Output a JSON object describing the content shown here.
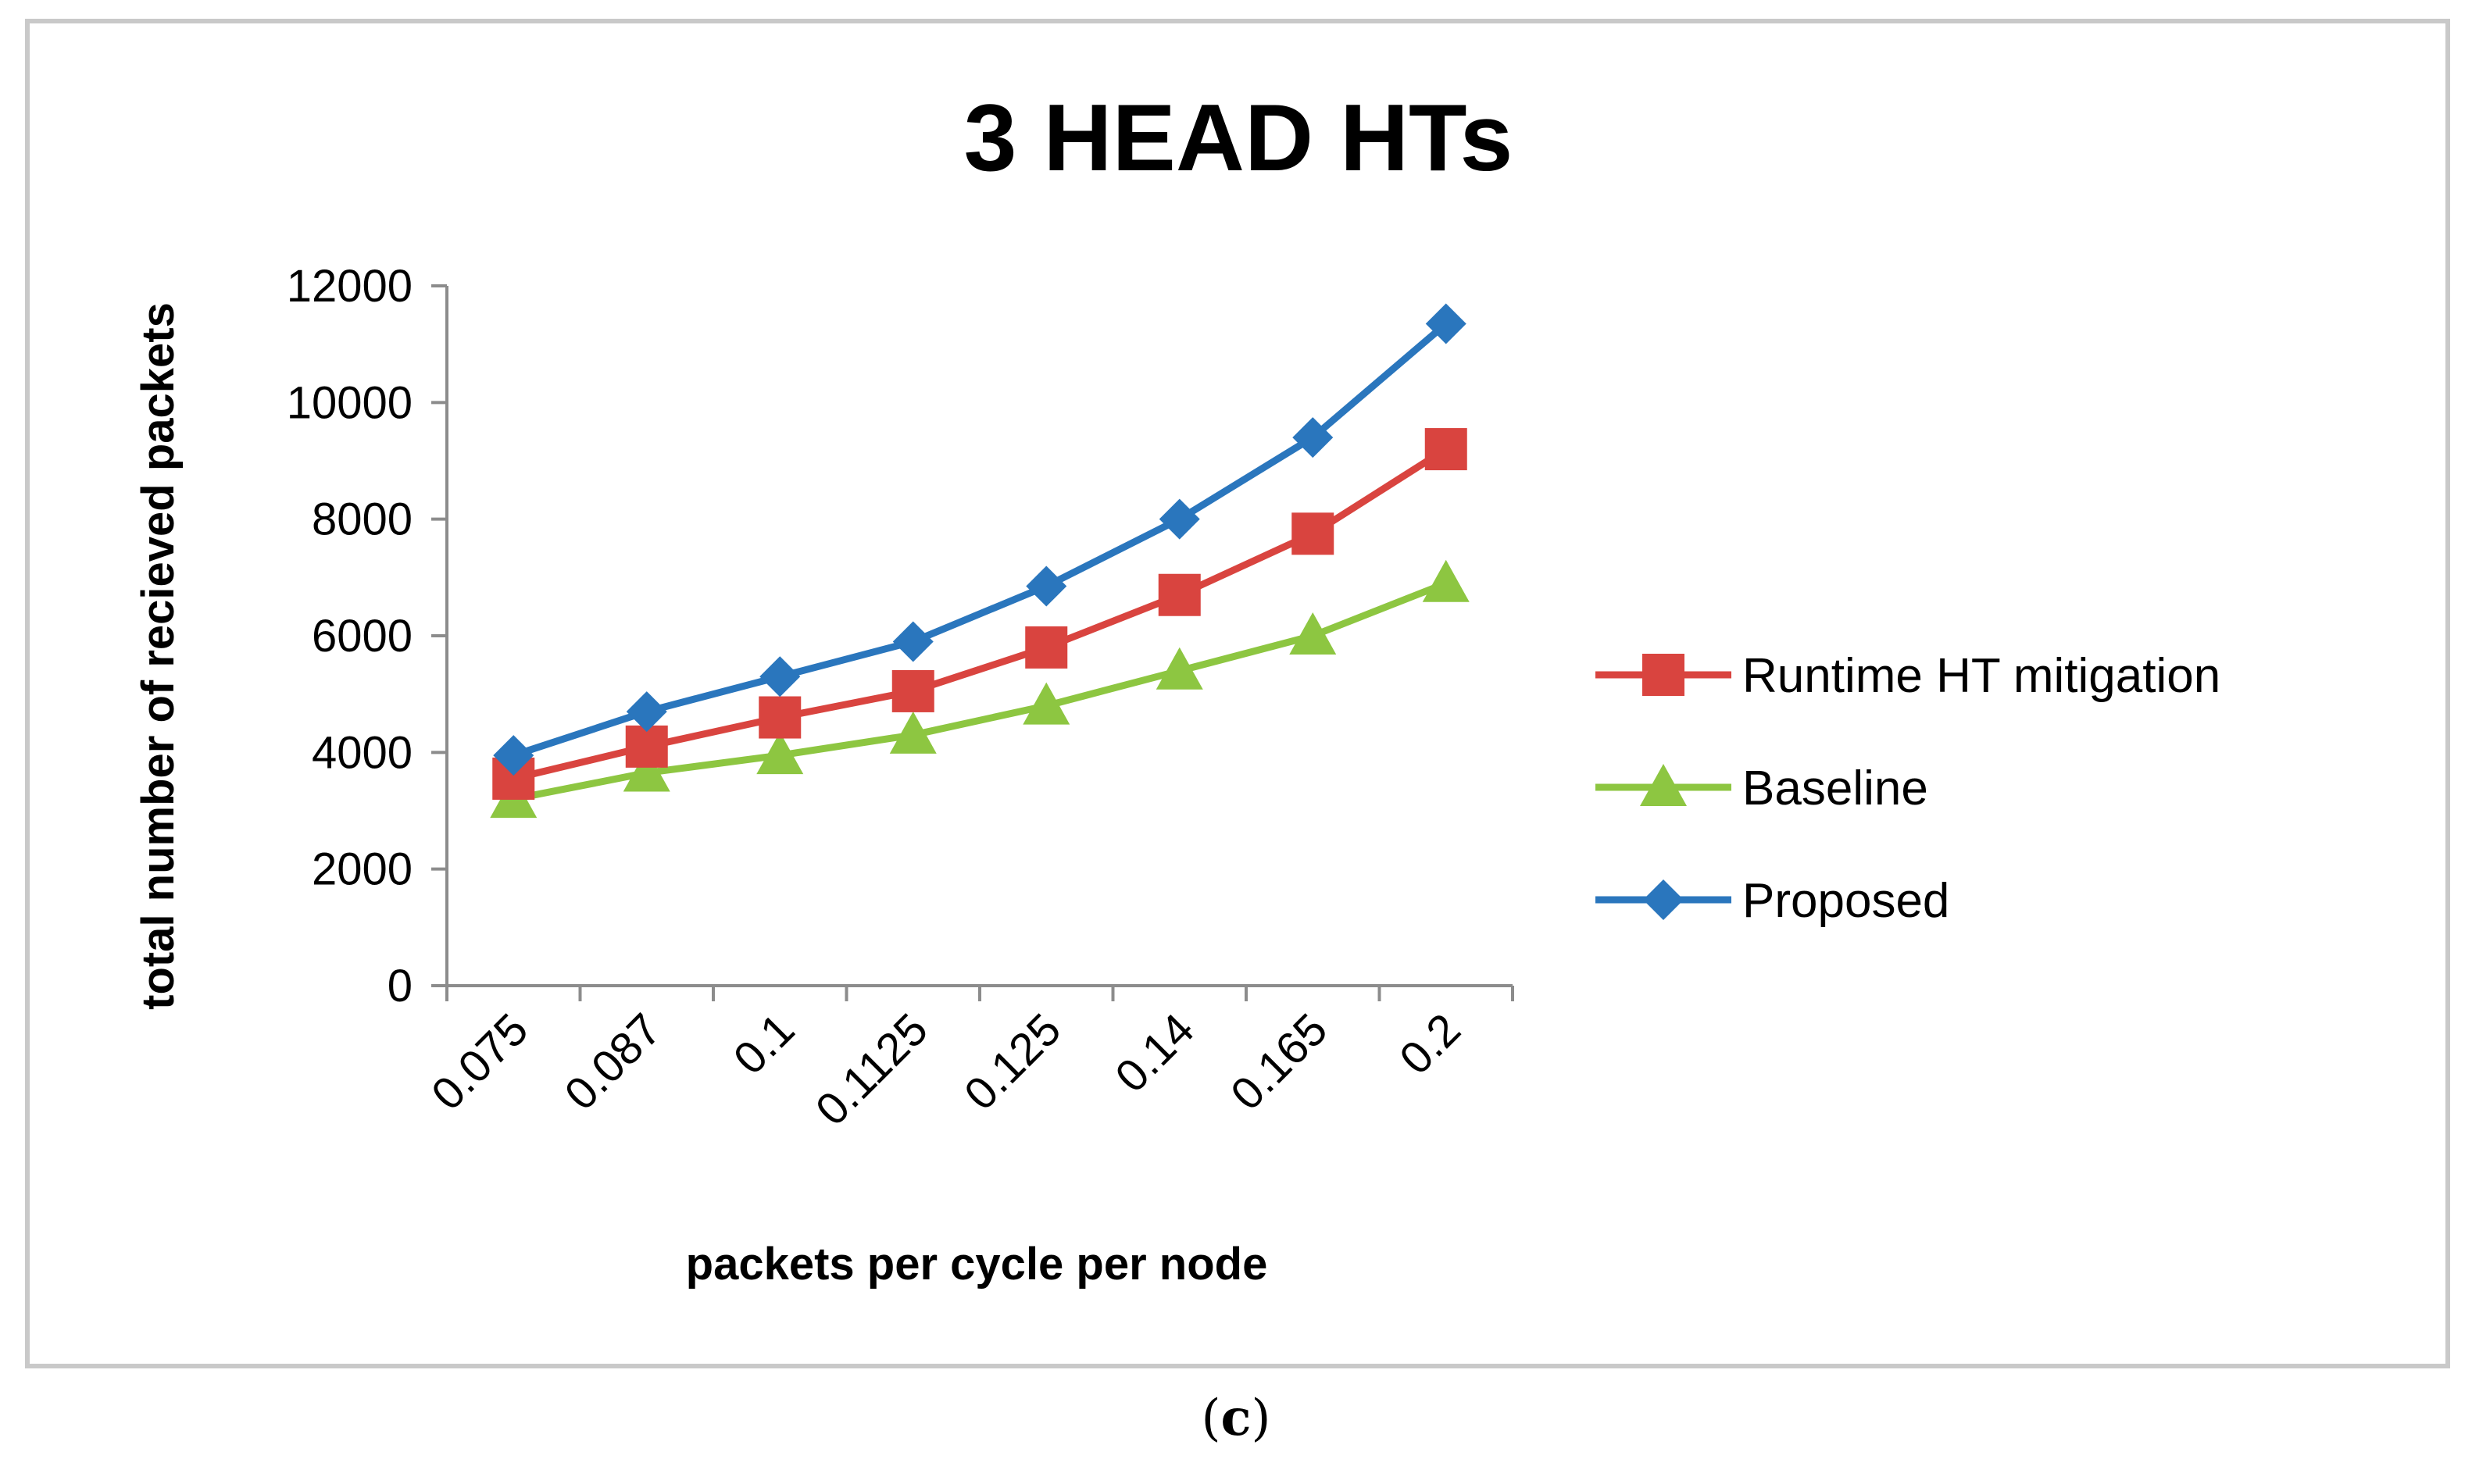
{
  "chart_data": {
    "type": "line",
    "title": "3 HEAD HTs",
    "xlabel": "packets per cycle per node",
    "ylabel": "total number of recieved packets",
    "categories": [
      "0.075",
      "0.087",
      "0.1",
      "0.1125",
      "0.125",
      "0.14",
      "0.165",
      "0.2"
    ],
    "ylim": [
      0,
      12000
    ],
    "yticks": [
      0,
      2000,
      4000,
      6000,
      8000,
      10000,
      12000
    ],
    "grid": false,
    "legend_position": "right",
    "series": [
      {
        "name": "Runtime HT mitigation",
        "color": "#d9443f",
        "marker": "square",
        "values": [
          3550,
          4100,
          4600,
          5050,
          5800,
          6700,
          7750,
          9200
        ]
      },
      {
        "name": "Baseline",
        "color": "#8dc641",
        "marker": "triangle",
        "values": [
          3200,
          3650,
          3950,
          4300,
          4800,
          5400,
          6000,
          6900
        ]
      },
      {
        "name": "Proposed",
        "color": "#2a76bd",
        "marker": "diamond",
        "values": [
          3950,
          4700,
          5300,
          5900,
          6850,
          8000,
          9400,
          11350
        ]
      }
    ]
  },
  "caption": {
    "open": "(",
    "letter": "c",
    "close": ")"
  }
}
